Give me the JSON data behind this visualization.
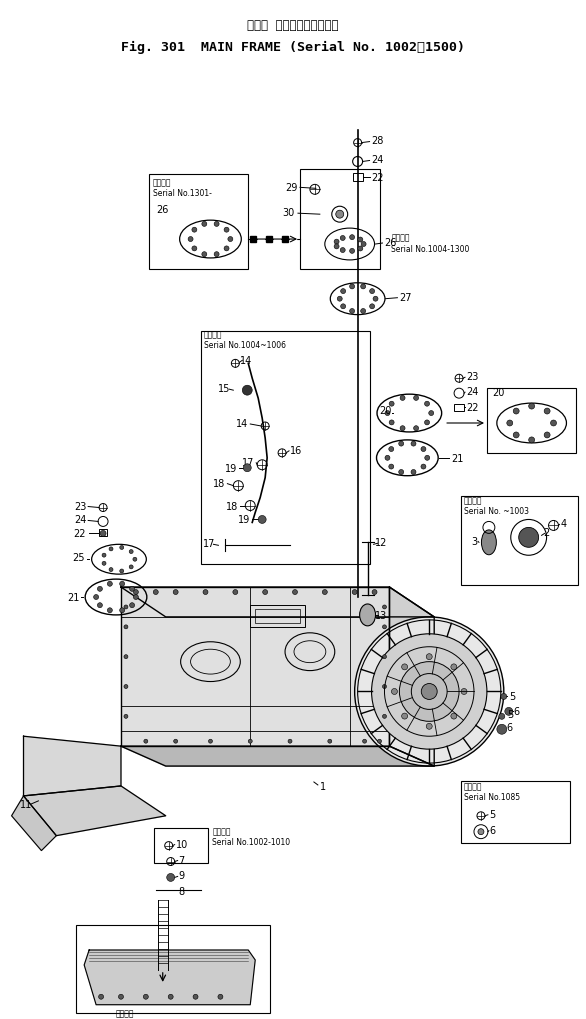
{
  "bg_color": "#ffffff",
  "lc": "#000000",
  "fig_width": 5.86,
  "fig_height": 10.2,
  "dpi": 100,
  "title1": "メイン  フレーム（適用号機",
  "title2": "Fig. 301  MAIN FRAME (Serial No. 1002～1500)"
}
